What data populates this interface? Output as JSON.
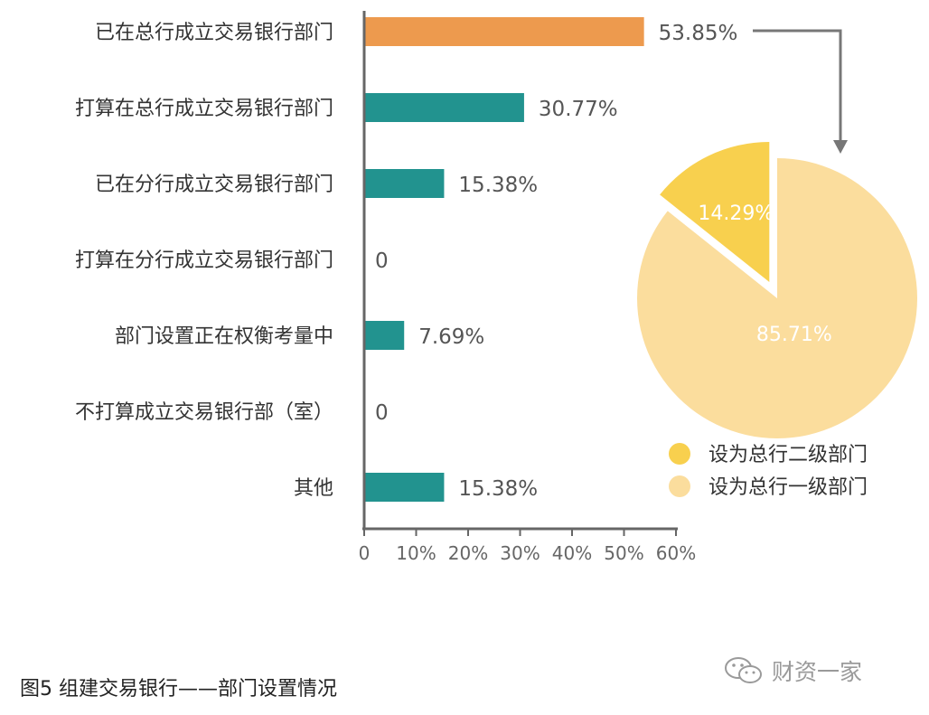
{
  "chart_data": [
    {
      "type": "bar",
      "orientation": "horizontal",
      "categories": [
        "已在总行成立交易银行部门",
        "打算在总行成立交易银行部门",
        "已在分行成立交易银行部门",
        "打算在分行成立交易银行部门",
        "部门设置正在权衡考量中",
        "不打算成立交易银行部（室）",
        "其他"
      ],
      "values": [
        53.85,
        30.77,
        15.38,
        0,
        7.69,
        0,
        15.38
      ],
      "value_labels": [
        "53.85%",
        "30.77%",
        "15.38%",
        "0",
        "7.69%",
        "0",
        "15.38%"
      ],
      "bar_colors": [
        "#ed9a4e",
        "#22938f",
        "#22938f",
        "#22938f",
        "#22938f",
        "#22938f",
        "#22938f"
      ],
      "xlim": [
        0,
        60
      ],
      "xticks": [
        "0",
        "10%",
        "20%",
        "30%",
        "40%",
        "50%",
        "60%"
      ],
      "grid": false
    },
    {
      "type": "pie",
      "labels": [
        "设为总行二级部门",
        "设为总行一级部门"
      ],
      "values": [
        14.29,
        85.71
      ],
      "value_labels": [
        "14.29%",
        "85.71%"
      ],
      "colors": [
        "#f8d04e",
        "#fbdd9d"
      ],
      "exploded": [
        true,
        false
      ],
      "legend_position": "bottom"
    }
  ],
  "caption": "图5  组建交易银行——部门设置情况",
  "watermark": "财资一家",
  "colors": {
    "axis": "#666666",
    "label": "#333333",
    "value_label": "#555555",
    "pie_text": "#ffffff"
  }
}
